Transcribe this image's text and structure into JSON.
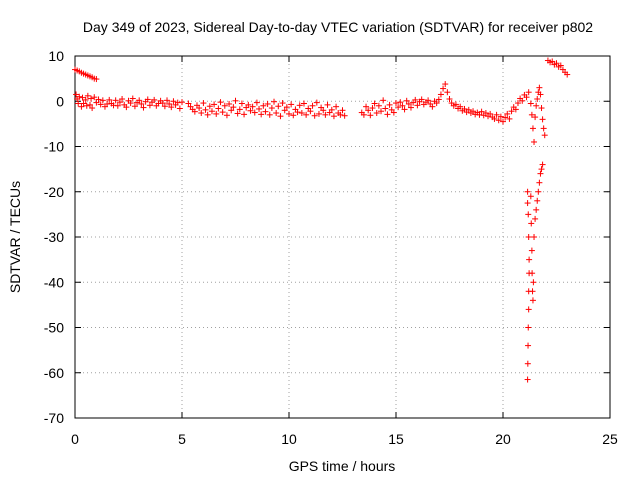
{
  "chart_data": {
    "type": "scatter",
    "title": "Day 349 of 2023, Sidereal Day-to-day VTEC variation (SDTVAR) for receiver p802",
    "xlabel": "GPS time / hours",
    "ylabel": "SDTVAR / TECUs",
    "xlim": [
      0,
      25
    ],
    "ylim": [
      -70,
      10
    ],
    "xticks": [
      0,
      5,
      10,
      15,
      20,
      25
    ],
    "yticks": [
      10,
      0,
      -10,
      -20,
      -30,
      -40,
      -50,
      -60,
      -70
    ],
    "grid": true,
    "marker": "+",
    "series": [
      {
        "name": "SDTVAR",
        "color": "#ff0000",
        "points": [
          [
            0.0,
            7.0
          ],
          [
            0.1,
            6.8
          ],
          [
            0.2,
            6.6
          ],
          [
            0.3,
            6.3
          ],
          [
            0.4,
            6.1
          ],
          [
            0.5,
            5.9
          ],
          [
            0.6,
            5.7
          ],
          [
            0.7,
            5.5
          ],
          [
            0.8,
            5.3
          ],
          [
            0.9,
            5.0
          ],
          [
            1.0,
            4.9
          ],
          [
            0.05,
            1.5
          ],
          [
            0.1,
            0.5
          ],
          [
            0.15,
            -0.5
          ],
          [
            0.2,
            1.0
          ],
          [
            0.3,
            -1.2
          ],
          [
            0.35,
            0.8
          ],
          [
            0.4,
            -0.5
          ],
          [
            0.5,
            0.3
          ],
          [
            0.55,
            -1.0
          ],
          [
            0.6,
            1.2
          ],
          [
            0.7,
            -0.8
          ],
          [
            0.75,
            0.6
          ],
          [
            0.8,
            -1.5
          ],
          [
            0.9,
            0.9
          ],
          [
            1.0,
            -0.3
          ],
          [
            1.1,
            0.4
          ],
          [
            1.2,
            -0.7
          ],
          [
            1.3,
            0.2
          ],
          [
            1.4,
            -1.2
          ],
          [
            1.5,
            -0.6
          ],
          [
            1.6,
            0.3
          ],
          [
            1.7,
            -0.5
          ],
          [
            1.8,
            -0.9
          ],
          [
            1.9,
            0.2
          ],
          [
            2.0,
            -1.0
          ],
          [
            2.1,
            -0.2
          ],
          [
            2.2,
            0.5
          ],
          [
            2.3,
            -0.8
          ],
          [
            2.4,
            -1.3
          ],
          [
            2.5,
            0.1
          ],
          [
            2.6,
            -0.4
          ],
          [
            2.7,
            0.6
          ],
          [
            2.8,
            -1.1
          ],
          [
            2.9,
            -0.3
          ],
          [
            3.0,
            0.2
          ],
          [
            3.1,
            -0.6
          ],
          [
            3.2,
            -1.4
          ],
          [
            3.3,
            -0.1
          ],
          [
            3.4,
            0.4
          ],
          [
            3.5,
            -0.9
          ],
          [
            3.6,
            -0.2
          ],
          [
            3.7,
            0.3
          ],
          [
            3.8,
            -1.0
          ],
          [
            3.9,
            -0.5
          ],
          [
            4.0,
            0.1
          ],
          [
            4.1,
            -0.4
          ],
          [
            4.2,
            -1.1
          ],
          [
            4.3,
            0.2
          ],
          [
            4.4,
            -0.6
          ],
          [
            4.5,
            -1.3
          ],
          [
            4.6,
            0.0
          ],
          [
            4.7,
            -0.8
          ],
          [
            4.8,
            -0.3
          ],
          [
            4.9,
            -1.6
          ],
          [
            5.0,
            -0.2
          ],
          [
            5.3,
            -0.5
          ],
          [
            5.4,
            -1.2
          ],
          [
            5.5,
            -1.8
          ],
          [
            5.6,
            -2.3
          ],
          [
            5.7,
            -0.9
          ],
          [
            5.8,
            -1.5
          ],
          [
            5.9,
            -2.6
          ],
          [
            6.0,
            -0.4
          ],
          [
            6.1,
            -1.9
          ],
          [
            6.2,
            -3.0
          ],
          [
            6.3,
            -1.1
          ],
          [
            6.4,
            -2.2
          ],
          [
            6.5,
            -0.7
          ],
          [
            6.6,
            -2.8
          ],
          [
            6.7,
            -1.6
          ],
          [
            6.8,
            -0.2
          ],
          [
            6.9,
            -2.4
          ],
          [
            7.0,
            -1.0
          ],
          [
            7.1,
            -3.1
          ],
          [
            7.2,
            -0.6
          ],
          [
            7.3,
            -2.0
          ],
          [
            7.4,
            -1.3
          ],
          [
            7.5,
            0.1
          ],
          [
            7.6,
            -2.7
          ],
          [
            7.7,
            -1.8
          ],
          [
            7.8,
            -0.5
          ],
          [
            7.9,
            -2.9
          ],
          [
            8.0,
            -1.4
          ],
          [
            8.1,
            -0.8
          ],
          [
            8.2,
            -2.1
          ],
          [
            8.3,
            -1.2
          ],
          [
            8.4,
            -2.5
          ],
          [
            8.5,
            -0.3
          ],
          [
            8.6,
            -1.7
          ],
          [
            8.7,
            -2.9
          ],
          [
            8.8,
            -1.0
          ],
          [
            8.9,
            -2.3
          ],
          [
            9.0,
            -0.6
          ],
          [
            9.1,
            -3.0
          ],
          [
            9.2,
            -1.5
          ],
          [
            9.3,
            -0.1
          ],
          [
            9.4,
            -2.6
          ],
          [
            9.5,
            -1.1
          ],
          [
            9.6,
            -3.3
          ],
          [
            9.7,
            -0.4
          ],
          [
            9.8,
            -2.0
          ],
          [
            9.9,
            -1.3
          ],
          [
            10.0,
            -2.8
          ],
          [
            10.1,
            -0.7
          ],
          [
            10.2,
            -3.1
          ],
          [
            10.3,
            -1.8
          ],
          [
            10.4,
            -2.4
          ],
          [
            10.5,
            -0.9
          ],
          [
            10.6,
            -2.6
          ],
          [
            10.7,
            -0.5
          ],
          [
            10.8,
            -3.0
          ],
          [
            10.9,
            -1.6
          ],
          [
            11.0,
            -2.2
          ],
          [
            11.1,
            -1.0
          ],
          [
            11.2,
            -3.2
          ],
          [
            11.3,
            -0.3
          ],
          [
            11.4,
            -2.8
          ],
          [
            11.5,
            -1.4
          ],
          [
            11.6,
            -2.0
          ],
          [
            11.7,
            -3.0
          ],
          [
            11.8,
            -0.8
          ],
          [
            11.9,
            -2.5
          ],
          [
            12.0,
            -1.9
          ],
          [
            12.1,
            -3.3
          ],
          [
            12.2,
            -1.2
          ],
          [
            12.3,
            -2.6
          ],
          [
            12.4,
            -3.0
          ],
          [
            12.5,
            -2.0
          ],
          [
            12.6,
            -3.2
          ],
          [
            13.4,
            -2.5
          ],
          [
            13.5,
            -3.0
          ],
          [
            13.6,
            -1.2
          ],
          [
            13.7,
            -2.0
          ],
          [
            13.8,
            -3.1
          ],
          [
            13.9,
            -1.5
          ],
          [
            14.0,
            -0.5
          ],
          [
            14.1,
            -2.6
          ],
          [
            14.2,
            -1.0
          ],
          [
            14.3,
            -2.2
          ],
          [
            14.4,
            0.2
          ],
          [
            14.5,
            -1.6
          ],
          [
            14.6,
            -2.9
          ],
          [
            14.7,
            -0.8
          ],
          [
            14.8,
            -1.9
          ],
          [
            14.9,
            -2.5
          ],
          [
            15.0,
            -0.4
          ],
          [
            15.1,
            -1.3
          ],
          [
            15.2,
            -0.2
          ],
          [
            15.3,
            -1.0
          ],
          [
            15.4,
            -1.8
          ],
          [
            15.5,
            0.1
          ],
          [
            15.6,
            -0.6
          ],
          [
            15.7,
            -1.4
          ],
          [
            15.8,
            -0.3
          ],
          [
            15.9,
            0.3
          ],
          [
            16.0,
            -0.9
          ],
          [
            16.1,
            -0.1
          ],
          [
            16.2,
            0.4
          ],
          [
            16.3,
            -0.7
          ],
          [
            16.4,
            -0.2
          ],
          [
            16.5,
            0.2
          ],
          [
            16.6,
            -0.6
          ],
          [
            16.7,
            -1.2
          ],
          [
            16.8,
            0.0
          ],
          [
            16.9,
            -0.4
          ],
          [
            17.0,
            0.4
          ],
          [
            17.1,
            1.5
          ],
          [
            17.2,
            2.8
          ],
          [
            17.3,
            3.8
          ],
          [
            17.4,
            2.0
          ],
          [
            17.5,
            0.5
          ],
          [
            17.6,
            -0.4
          ],
          [
            17.7,
            -1.0
          ],
          [
            17.8,
            -0.7
          ],
          [
            17.9,
            -1.6
          ],
          [
            18.0,
            -1.2
          ],
          [
            18.1,
            -2.1
          ],
          [
            18.2,
            -1.7
          ],
          [
            18.3,
            -2.4
          ],
          [
            18.4,
            -1.9
          ],
          [
            18.5,
            -2.6
          ],
          [
            18.6,
            -2.2
          ],
          [
            18.7,
            -2.9
          ],
          [
            18.8,
            -2.5
          ],
          [
            18.9,
            -3.0
          ],
          [
            19.0,
            -2.3
          ],
          [
            19.1,
            -3.1
          ],
          [
            19.2,
            -2.6
          ],
          [
            19.3,
            -3.3
          ],
          [
            19.4,
            -2.8
          ],
          [
            19.5,
            -3.5
          ],
          [
            19.6,
            -3.9
          ],
          [
            19.7,
            -3.0
          ],
          [
            19.8,
            -4.2
          ],
          [
            19.9,
            -3.4
          ],
          [
            20.0,
            -4.5
          ],
          [
            20.1,
            -3.6
          ],
          [
            20.2,
            -2.8
          ],
          [
            20.3,
            -3.9
          ],
          [
            20.4,
            -2.2
          ],
          [
            20.5,
            -1.3
          ],
          [
            20.6,
            -1.8
          ],
          [
            20.7,
            -0.4
          ],
          [
            20.8,
            0.6
          ],
          [
            20.9,
            0.1
          ],
          [
            21.0,
            1.4
          ],
          [
            21.1,
            0.9
          ],
          [
            21.2,
            2.0
          ],
          [
            21.3,
            -0.5
          ],
          [
            21.35,
            -3.0
          ],
          [
            21.4,
            -6.0
          ],
          [
            21.45,
            -9.0
          ],
          [
            21.5,
            -3.5
          ],
          [
            21.55,
            -1.0
          ],
          [
            21.6,
            0.5
          ],
          [
            21.65,
            2.0
          ],
          [
            21.7,
            3.0
          ],
          [
            21.75,
            1.5
          ],
          [
            21.8,
            -1.5
          ],
          [
            21.85,
            -4.0
          ],
          [
            21.9,
            -6.0
          ],
          [
            21.95,
            -7.5
          ],
          [
            21.15,
            -20.0
          ],
          [
            21.15,
            -22.5
          ],
          [
            21.18,
            -25.0
          ],
          [
            21.2,
            -30.0
          ],
          [
            21.22,
            -35.0
          ],
          [
            21.22,
            -38.0
          ],
          [
            21.2,
            -42.0
          ],
          [
            21.2,
            -46.0
          ],
          [
            21.18,
            -50.0
          ],
          [
            21.17,
            -54.0
          ],
          [
            21.16,
            -58.0
          ],
          [
            21.15,
            -61.5
          ],
          [
            21.3,
            -21.0
          ],
          [
            21.32,
            -27.0
          ],
          [
            21.35,
            -33.0
          ],
          [
            21.36,
            -38.0
          ],
          [
            21.38,
            -42.0
          ],
          [
            21.4,
            -44.0
          ],
          [
            21.42,
            -40.0
          ],
          [
            21.45,
            -30.0
          ],
          [
            21.5,
            -26.0
          ],
          [
            21.55,
            -24.0
          ],
          [
            21.6,
            -22.0
          ],
          [
            21.65,
            -20.0
          ],
          [
            21.7,
            -18.0
          ],
          [
            21.75,
            -16.0
          ],
          [
            21.8,
            -15.0
          ],
          [
            21.85,
            -14.0
          ],
          [
            22.1,
            9.0
          ],
          [
            22.2,
            8.6
          ],
          [
            22.3,
            8.8
          ],
          [
            22.4,
            8.1
          ],
          [
            22.5,
            8.4
          ],
          [
            22.6,
            7.6
          ],
          [
            22.7,
            7.9
          ],
          [
            22.8,
            7.0
          ],
          [
            22.9,
            6.4
          ],
          [
            23.0,
            5.9
          ]
        ]
      }
    ]
  }
}
